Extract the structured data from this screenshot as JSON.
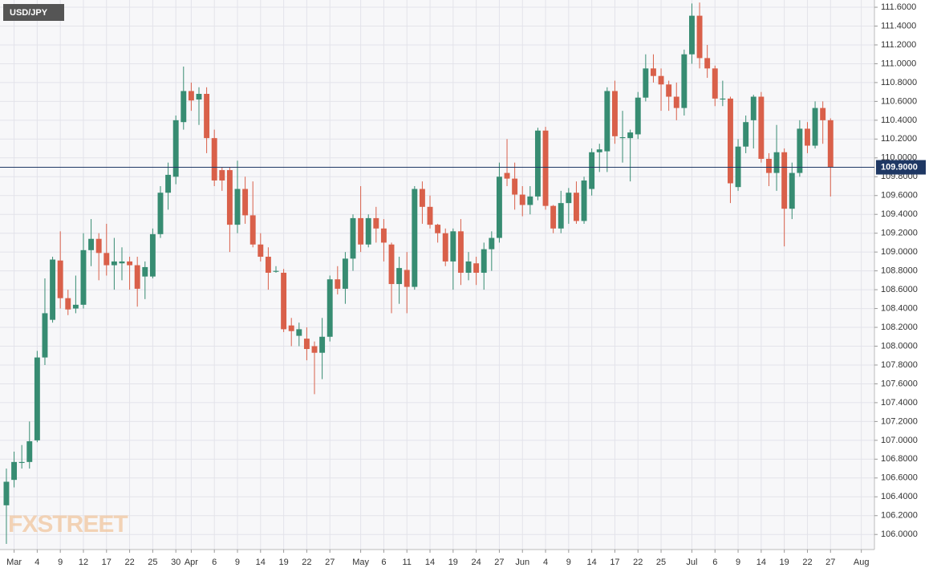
{
  "chart_data": {
    "type": "candlestick",
    "title": "USD/JPY",
    "watermark": "FXSTREET",
    "up_color": "#378c72",
    "down_color": "#d9604a",
    "grid": true,
    "last_price": {
      "value": 109.9,
      "label": "109.9000"
    },
    "last_price_color": "#1f3864",
    "open": [
      106.31,
      106.58,
      106.76,
      106.77,
      107.0,
      107.88,
      108.28,
      108.91,
      108.51,
      108.4,
      108.44,
      109.02,
      109.14,
      108.99,
      108.86,
      108.88,
      108.9,
      108.86,
      108.74,
      108.74,
      109.19,
      109.63,
      109.8,
      110.38,
      110.71,
      110.62,
      110.68,
      110.21,
      109.87,
      109.87,
      109.29,
      109.67,
      109.39,
      109.08,
      108.95,
      108.79,
      108.78,
      108.22,
      108.11,
      108.08,
      108.0,
      107.93,
      108.1,
      108.71,
      108.61,
      108.93,
      109.36,
      109.08,
      109.36,
      109.25,
      109.08,
      108.66,
      108.81,
      108.63,
      109.67,
      109.48,
      109.29,
      109.2,
      108.9,
      109.22,
      108.78,
      108.88,
      108.78,
      109.03,
      109.15,
      109.84,
      109.78,
      109.61,
      109.5,
      109.59,
      110.29,
      109.49,
      109.25,
      109.52,
      109.63,
      109.33,
      109.67,
      110.06,
      110.07,
      110.71,
      110.21,
      110.21,
      110.25,
      110.64,
      110.95,
      110.87,
      110.78,
      110.65,
      110.53,
      111.1,
      111.51,
      111.06,
      110.95,
      110.62,
      110.63,
      109.69,
      110.12,
      110.4,
      110.65,
      109.99,
      109.84,
      110.06,
      109.46,
      109.84,
      110.31,
      110.13,
      110.53,
      110.4
    ],
    "high": [
      106.7,
      106.88,
      106.95,
      107.2,
      107.95,
      108.72,
      108.95,
      109.22,
      108.6,
      108.75,
      109.2,
      109.35,
      109.2,
      109.3,
      109.15,
      109.05,
      108.95,
      108.95,
      108.9,
      109.25,
      109.7,
      109.95,
      110.45,
      110.97,
      110.8,
      110.75,
      110.75,
      110.3,
      109.9,
      109.9,
      109.97,
      109.8,
      109.75,
      109.2,
      109.05,
      108.85,
      108.82,
      108.3,
      108.25,
      108.2,
      108.05,
      108.3,
      108.75,
      108.85,
      109.0,
      109.4,
      109.7,
      109.4,
      109.48,
      109.35,
      109.1,
      108.95,
      109.0,
      109.7,
      109.75,
      109.6,
      109.3,
      109.25,
      109.25,
      109.35,
      109.0,
      108.95,
      109.1,
      109.22,
      109.95,
      110.2,
      109.95,
      109.7,
      109.7,
      110.32,
      110.33,
      109.5,
      109.65,
      109.68,
      109.75,
      109.8,
      110.1,
      110.15,
      110.75,
      110.82,
      110.5,
      110.3,
      110.7,
      111.1,
      111.1,
      110.95,
      110.82,
      110.8,
      111.15,
      111.64,
      111.65,
      111.2,
      110.98,
      110.82,
      110.65,
      110.2,
      110.45,
      110.67,
      110.7,
      110.05,
      110.35,
      110.1,
      109.95,
      110.4,
      110.38,
      110.6,
      110.6,
      110.42
    ],
    "low": [
      105.9,
      106.5,
      106.7,
      106.7,
      106.98,
      107.8,
      108.25,
      108.4,
      108.33,
      108.35,
      108.4,
      108.85,
      108.7,
      108.75,
      108.6,
      108.7,
      108.6,
      108.42,
      108.5,
      108.72,
      109.15,
      109.45,
      109.72,
      110.3,
      110.5,
      110.35,
      110.05,
      109.7,
      109.65,
      109.0,
      109.2,
      109.3,
      109.05,
      108.9,
      108.6,
      108.78,
      108.15,
      108.0,
      108.0,
      107.85,
      107.49,
      107.65,
      108.05,
      108.55,
      108.45,
      108.8,
      109.0,
      109.05,
      109.1,
      108.9,
      108.35,
      108.45,
      108.35,
      108.6,
      109.3,
      109.25,
      109.1,
      108.85,
      108.6,
      108.65,
      108.7,
      108.65,
      108.6,
      108.8,
      109.1,
      109.7,
      109.45,
      109.38,
      109.4,
      109.55,
      109.45,
      109.2,
      109.2,
      109.3,
      109.3,
      109.3,
      109.6,
      109.85,
      109.85,
      110.15,
      109.95,
      109.75,
      110.2,
      110.6,
      110.8,
      110.5,
      110.5,
      110.4,
      110.45,
      111.0,
      110.95,
      110.85,
      110.55,
      110.55,
      109.52,
      109.65,
      110.05,
      110.1,
      109.95,
      109.7,
      109.65,
      109.06,
      109.35,
      109.8,
      110.05,
      110.1,
      110.15,
      109.59
    ],
    "close": [
      106.56,
      106.77,
      106.77,
      106.99,
      107.88,
      108.35,
      108.92,
      108.51,
      108.39,
      108.44,
      109.02,
      109.14,
      108.99,
      108.86,
      108.9,
      108.9,
      108.86,
      108.61,
      108.84,
      109.19,
      109.63,
      109.82,
      110.4,
      110.71,
      110.61,
      110.68,
      110.21,
      109.76,
      109.76,
      109.29,
      109.67,
      109.39,
      109.08,
      108.95,
      108.78,
      108.8,
      108.18,
      108.16,
      108.18,
      107.97,
      107.93,
      108.1,
      108.71,
      108.61,
      108.93,
      109.36,
      109.08,
      109.36,
      109.25,
      109.1,
      108.66,
      108.83,
      108.63,
      109.67,
      109.48,
      109.29,
      109.2,
      108.9,
      109.22,
      108.78,
      108.9,
      108.78,
      109.03,
      109.15,
      109.8,
      109.78,
      109.61,
      109.5,
      109.59,
      110.29,
      109.49,
      109.25,
      109.52,
      109.63,
      109.33,
      109.76,
      110.06,
      110.09,
      110.71,
      110.23,
      110.22,
      110.27,
      110.64,
      110.95,
      110.87,
      110.78,
      110.65,
      110.53,
      111.1,
      111.51,
      111.06,
      110.95,
      110.63,
      110.63,
      109.73,
      110.12,
      110.38,
      110.65,
      109.99,
      109.84,
      110.06,
      109.46,
      109.84,
      110.31,
      110.13,
      110.53,
      110.4,
      109.9
    ],
    "xlim": [
      -0.83,
      112.7
    ],
    "xticks": [
      {
        "value": 1,
        "label": "Mar"
      },
      {
        "value": 4,
        "label": "4"
      },
      {
        "value": 7,
        "label": "9"
      },
      {
        "value": 10,
        "label": "12"
      },
      {
        "value": 13,
        "label": "17"
      },
      {
        "value": 16,
        "label": "22"
      },
      {
        "value": 19,
        "label": "25"
      },
      {
        "value": 22,
        "label": "30"
      },
      {
        "value": 24,
        "label": "Apr"
      },
      {
        "value": 27,
        "label": "6"
      },
      {
        "value": 30,
        "label": "9"
      },
      {
        "value": 33,
        "label": "14"
      },
      {
        "value": 36,
        "label": "19"
      },
      {
        "value": 39,
        "label": "22"
      },
      {
        "value": 42,
        "label": "27"
      },
      {
        "value": 46,
        "label": "May"
      },
      {
        "value": 49,
        "label": "6"
      },
      {
        "value": 52,
        "label": "11"
      },
      {
        "value": 55,
        "label": "14"
      },
      {
        "value": 58,
        "label": "19"
      },
      {
        "value": 61,
        "label": "24"
      },
      {
        "value": 64,
        "label": "27"
      },
      {
        "value": 67,
        "label": "Jun"
      },
      {
        "value": 70,
        "label": "4"
      },
      {
        "value": 73,
        "label": "9"
      },
      {
        "value": 76,
        "label": "14"
      },
      {
        "value": 79,
        "label": "17"
      },
      {
        "value": 82,
        "label": "22"
      },
      {
        "value": 85,
        "label": "25"
      },
      {
        "value": 89,
        "label": "Jul"
      },
      {
        "value": 92,
        "label": "6"
      },
      {
        "value": 95,
        "label": "9"
      },
      {
        "value": 98,
        "label": "14"
      },
      {
        "value": 101,
        "label": "19"
      },
      {
        "value": 104,
        "label": "22"
      },
      {
        "value": 107,
        "label": "27"
      },
      {
        "value": 111,
        "label": "Aug"
      }
    ],
    "ylim": [
      105.84,
      111.677
    ],
    "yticks": [
      {
        "value": 106.0,
        "label": "106.0000"
      },
      {
        "value": 106.2,
        "label": "106.2000"
      },
      {
        "value": 106.4,
        "label": "106.4000"
      },
      {
        "value": 106.6,
        "label": "106.6000"
      },
      {
        "value": 106.8,
        "label": "106.8000"
      },
      {
        "value": 107.0,
        "label": "107.0000"
      },
      {
        "value": 107.2,
        "label": "107.2000"
      },
      {
        "value": 107.4,
        "label": "107.4000"
      },
      {
        "value": 107.6,
        "label": "107.6000"
      },
      {
        "value": 107.8,
        "label": "107.8000"
      },
      {
        "value": 108.0,
        "label": "108.0000"
      },
      {
        "value": 108.2,
        "label": "108.2000"
      },
      {
        "value": 108.4,
        "label": "108.4000"
      },
      {
        "value": 108.6,
        "label": "108.6000"
      },
      {
        "value": 108.8,
        "label": "108.8000"
      },
      {
        "value": 109.0,
        "label": "109.0000"
      },
      {
        "value": 109.2,
        "label": "109.2000"
      },
      {
        "value": 109.4,
        "label": "109.4000"
      },
      {
        "value": 109.6,
        "label": "109.6000"
      },
      {
        "value": 109.8,
        "label": "109.8000"
      },
      {
        "value": 110.0,
        "label": "110.0000"
      },
      {
        "value": 110.2,
        "label": "110.2000"
      },
      {
        "value": 110.4,
        "label": "110.4000"
      },
      {
        "value": 110.6,
        "label": "110.6000"
      },
      {
        "value": 110.8,
        "label": "110.8000"
      },
      {
        "value": 111.0,
        "label": "111.0000"
      },
      {
        "value": 111.2,
        "label": "111.2000"
      },
      {
        "value": 111.4,
        "label": "111.4000"
      },
      {
        "value": 111.6,
        "label": "111.6000"
      }
    ]
  }
}
